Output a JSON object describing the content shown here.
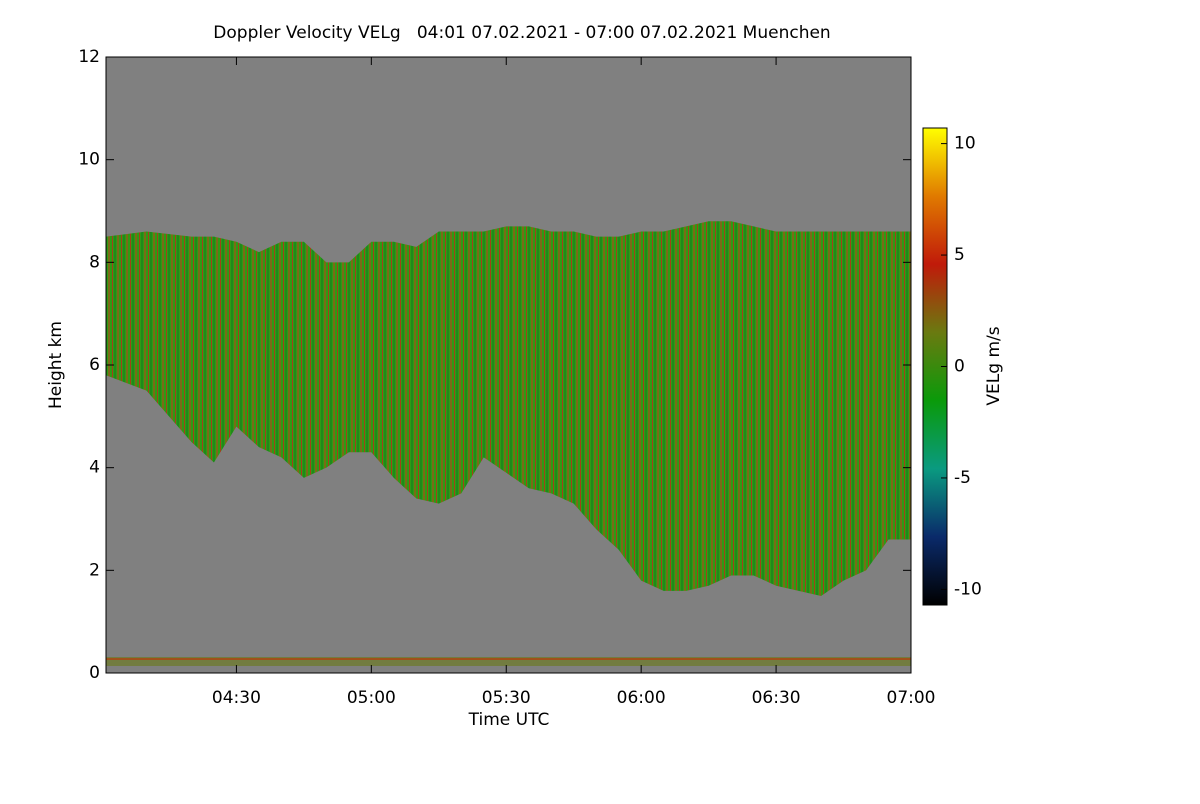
{
  "chart_data": {
    "type": "time-height",
    "title": "Doppler Velocity VELg   04:01 07.02.2021 - 07:00 07.02.2021 Muenchen",
    "x_label": "Time UTC",
    "y_label": "Height km",
    "colorbar_label": "VELg m/s",
    "xlim": [
      "04:01",
      "07:00"
    ],
    "xticks": [
      "04:30",
      "05:00",
      "05:30",
      "06:00",
      "06:30",
      "07:00"
    ],
    "ylim": [
      0,
      12
    ],
    "yticks": [
      0,
      2,
      4,
      6,
      8,
      10,
      12
    ],
    "clim": [
      -10.7,
      10.7
    ],
    "cticks": [
      -10,
      -5,
      0,
      5,
      10
    ],
    "colormap": [
      "#000000",
      "#0a2a6a",
      "#0a9a80",
      "#0a9a0a",
      "#6a7a10",
      "#c01a0a",
      "#e07a00",
      "#ffff00"
    ],
    "background": "#808080",
    "x": [
      "04:01",
      "04:10",
      "04:20",
      "04:25",
      "04:30",
      "04:35",
      "04:40",
      "04:45",
      "04:50",
      "04:55",
      "05:00",
      "05:05",
      "05:10",
      "05:15",
      "05:20",
      "05:25",
      "05:30",
      "05:35",
      "05:40",
      "05:45",
      "05:50",
      "05:55",
      "06:00",
      "06:05",
      "06:10",
      "06:15",
      "06:20",
      "06:25",
      "06:30",
      "06:35",
      "06:40",
      "06:45",
      "06:50",
      "06:55",
      "07:00"
    ],
    "cloud_top": [
      8.5,
      8.6,
      8.5,
      8.5,
      8.4,
      8.2,
      8.4,
      8.4,
      8.0,
      8.0,
      8.4,
      8.4,
      8.3,
      8.6,
      8.6,
      8.6,
      8.7,
      8.7,
      8.6,
      8.6,
      8.5,
      8.5,
      8.6,
      8.6,
      8.7,
      8.8,
      8.8,
      8.7,
      8.6,
      8.6,
      8.6,
      8.6,
      8.6,
      8.6,
      8.6
    ],
    "cloud_base": [
      5.8,
      5.5,
      4.5,
      4.1,
      4.8,
      4.4,
      4.2,
      3.8,
      4.0,
      4.3,
      4.3,
      3.8,
      3.4,
      3.3,
      3.5,
      4.2,
      3.9,
      3.6,
      3.5,
      3.3,
      2.8,
      2.4,
      1.8,
      1.6,
      1.6,
      1.7,
      1.9,
      1.9,
      1.7,
      1.6,
      1.5,
      1.8,
      2.0,
      2.6,
      2.6
    ]
  }
}
